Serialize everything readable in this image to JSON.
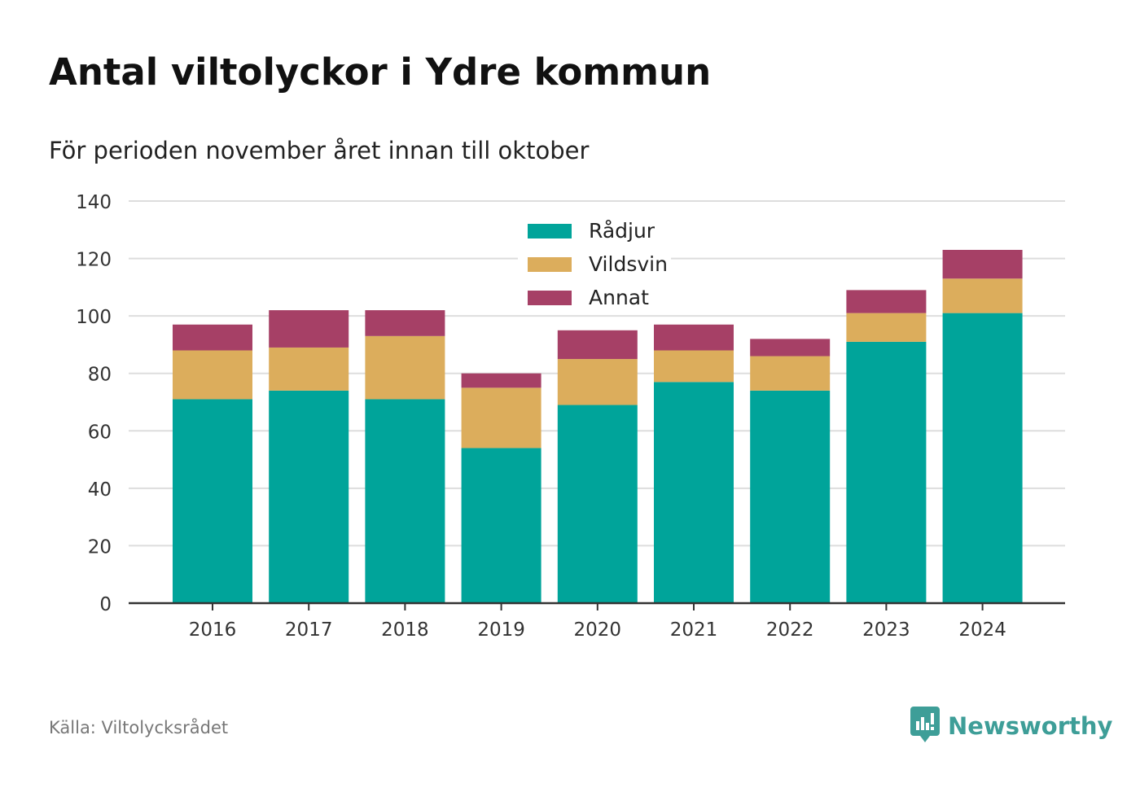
{
  "title": "Antal viltolyckor i Ydre kommun",
  "subtitle": "För perioden november året innan till oktober",
  "source": "Källa: Viltolycksrådet",
  "brand": {
    "name": "Newsworthy",
    "icon": "newsworthy-logo-icon",
    "color": "#3e9e98"
  },
  "chart_data": {
    "type": "bar",
    "stacked": true,
    "categories": [
      "2016",
      "2017",
      "2018",
      "2019",
      "2020",
      "2021",
      "2022",
      "2023",
      "2024"
    ],
    "series": [
      {
        "name": "Rådjur",
        "color": "#00a49a",
        "values": [
          71,
          74,
          71,
          54,
          69,
          77,
          74,
          91,
          101
        ]
      },
      {
        "name": "Vildsvin",
        "color": "#dcad5c",
        "values": [
          17,
          15,
          22,
          21,
          16,
          11,
          12,
          10,
          12
        ]
      },
      {
        "name": "Annat",
        "color": "#a64066",
        "values": [
          9,
          13,
          9,
          5,
          10,
          9,
          6,
          8,
          10
        ]
      }
    ],
    "ylim": [
      0,
      140
    ],
    "yticks": [
      0,
      20,
      40,
      60,
      80,
      100,
      120,
      140
    ],
    "grid": true,
    "legend": "top-center"
  }
}
